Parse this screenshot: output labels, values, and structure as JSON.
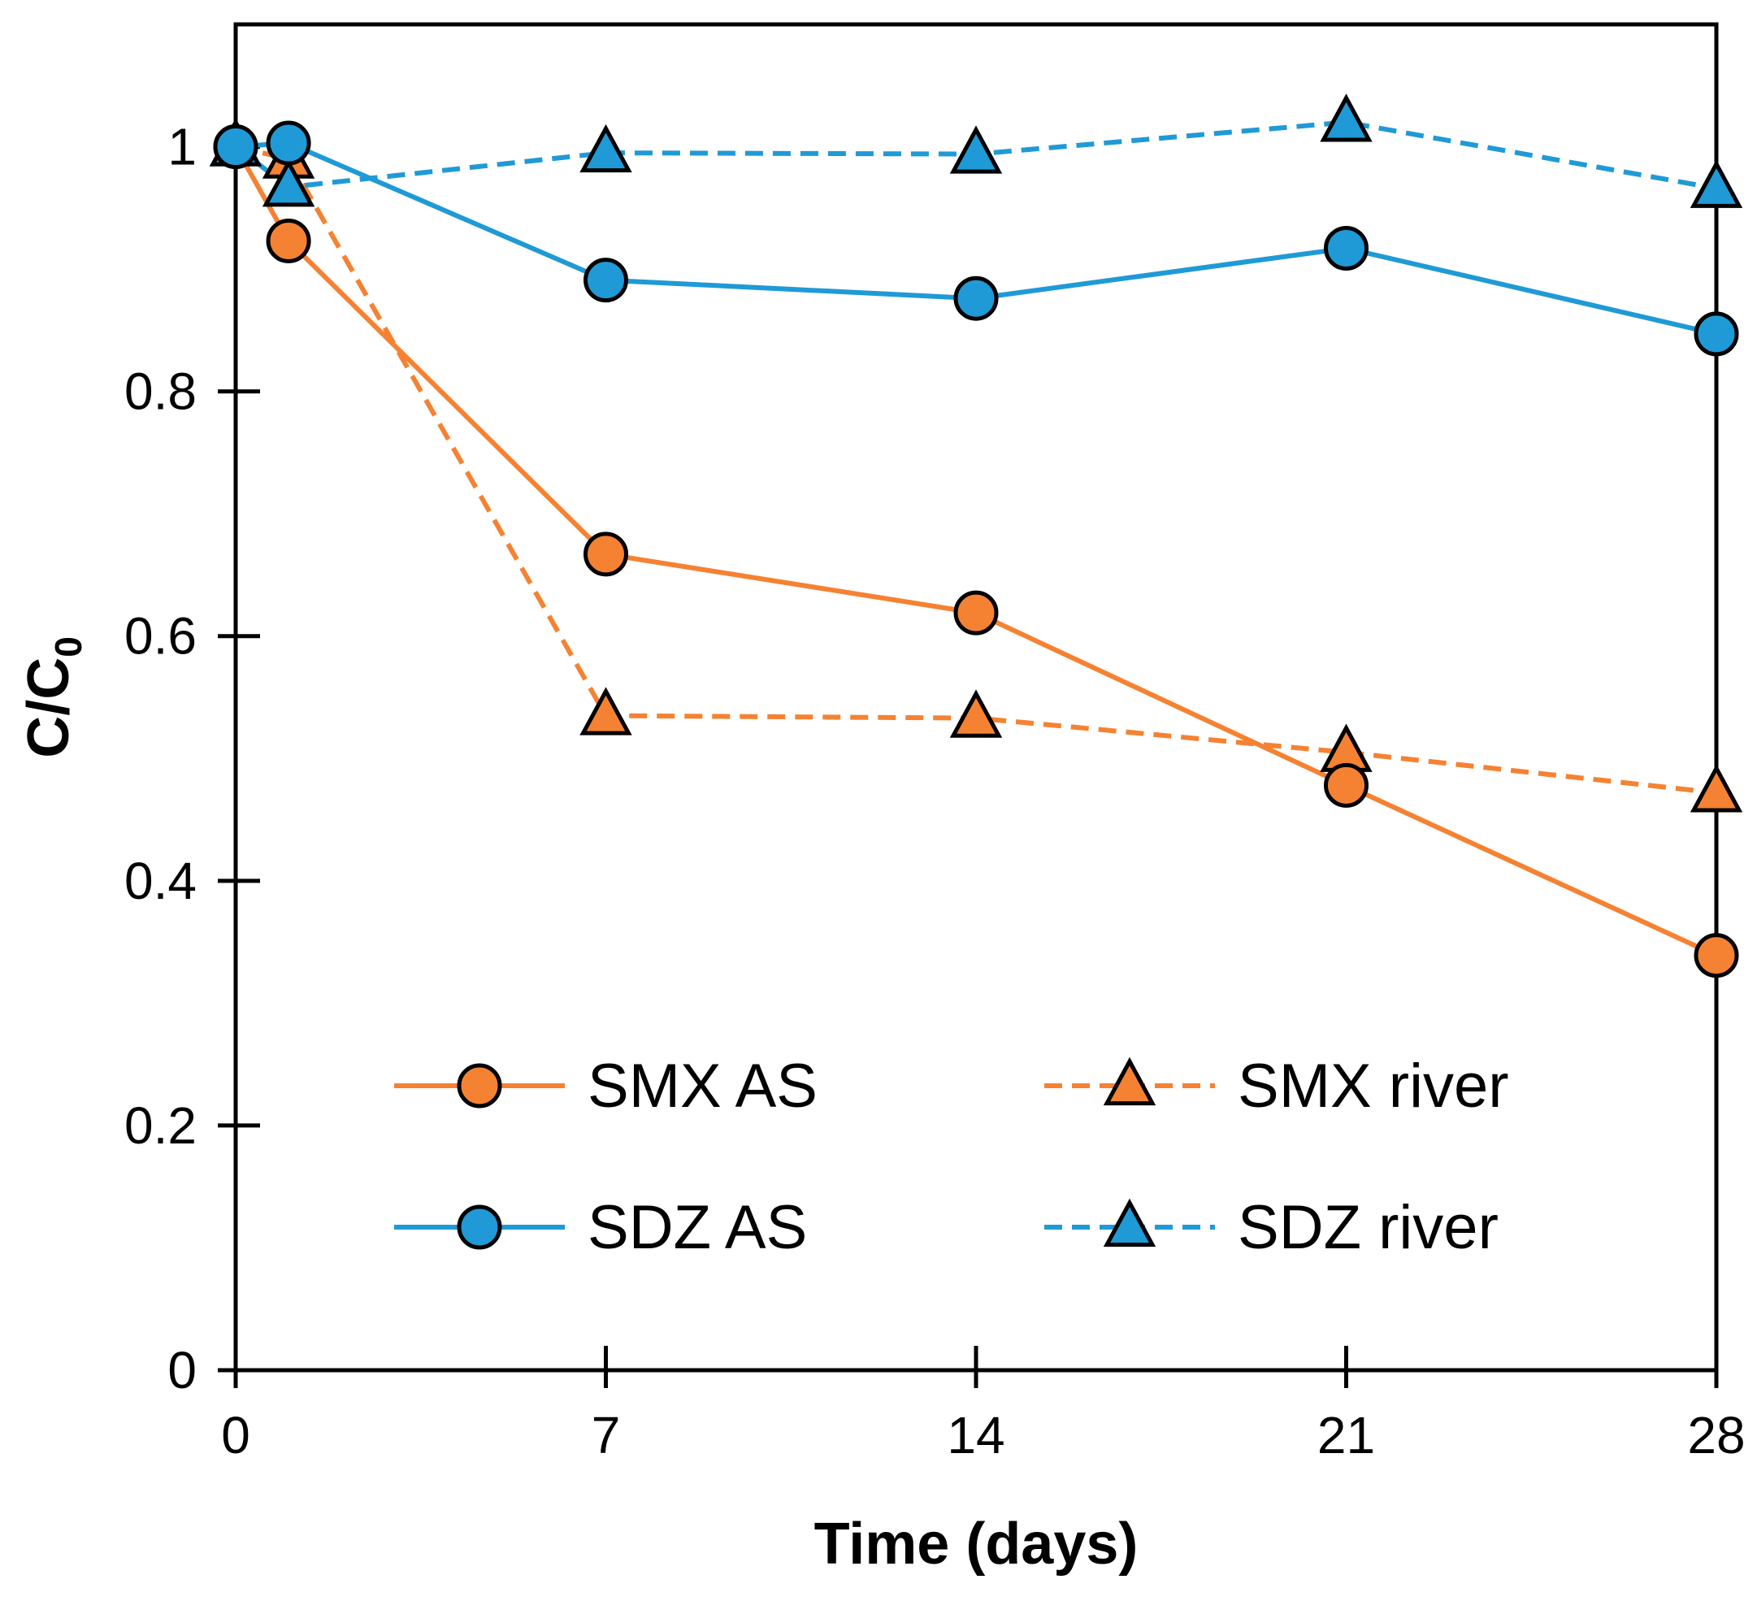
{
  "chart_data": {
    "type": "line",
    "title": "",
    "xlabel": "Time (days)",
    "ylabel_main": "C/C",
    "ylabel_sub": "0",
    "xlim": [
      0,
      28
    ],
    "ylim": [
      0,
      1.1
    ],
    "xticks": [
      0,
      7,
      14,
      21,
      28
    ],
    "xtick_labels": [
      "0",
      "7",
      "14",
      "21",
      "28"
    ],
    "yticks": [
      0,
      0.2,
      0.4,
      0.6,
      0.8,
      1
    ],
    "ytick_labels": [
      "0",
      "0.2",
      "0.4",
      "0.6",
      "0.8",
      "1"
    ],
    "grid": false,
    "legend_position": "lower-center",
    "colors": {
      "orange": "#F58232",
      "blue": "#1F9AD6",
      "axis": "#000000"
    },
    "series": [
      {
        "name": "SMX AS",
        "marker": "circle",
        "line": "solid",
        "color": "#F58232",
        "x": [
          0,
          1,
          7,
          14,
          21,
          28
        ],
        "y": [
          1.0,
          0.923,
          0.667,
          0.619,
          0.478,
          0.339
        ]
      },
      {
        "name": "SMX river",
        "marker": "triangle",
        "line": "dashed",
        "color": "#F58232",
        "x": [
          0,
          1,
          7,
          14,
          21,
          28
        ],
        "y": [
          1.0,
          0.99,
          0.535,
          0.533,
          0.505,
          0.472
        ]
      },
      {
        "name": "SDZ AS",
        "marker": "circle",
        "line": "solid",
        "color": "#1F9AD6",
        "x": [
          0,
          1,
          7,
          14,
          21,
          28
        ],
        "y": [
          1.0,
          1.003,
          0.891,
          0.876,
          0.917,
          0.847
        ]
      },
      {
        "name": "SDZ river",
        "marker": "triangle",
        "line": "dashed",
        "color": "#1F9AD6",
        "x": [
          0,
          1,
          7,
          14,
          21,
          28
        ],
        "y": [
          1.0,
          0.967,
          0.995,
          0.994,
          1.02,
          0.966
        ]
      }
    ]
  }
}
